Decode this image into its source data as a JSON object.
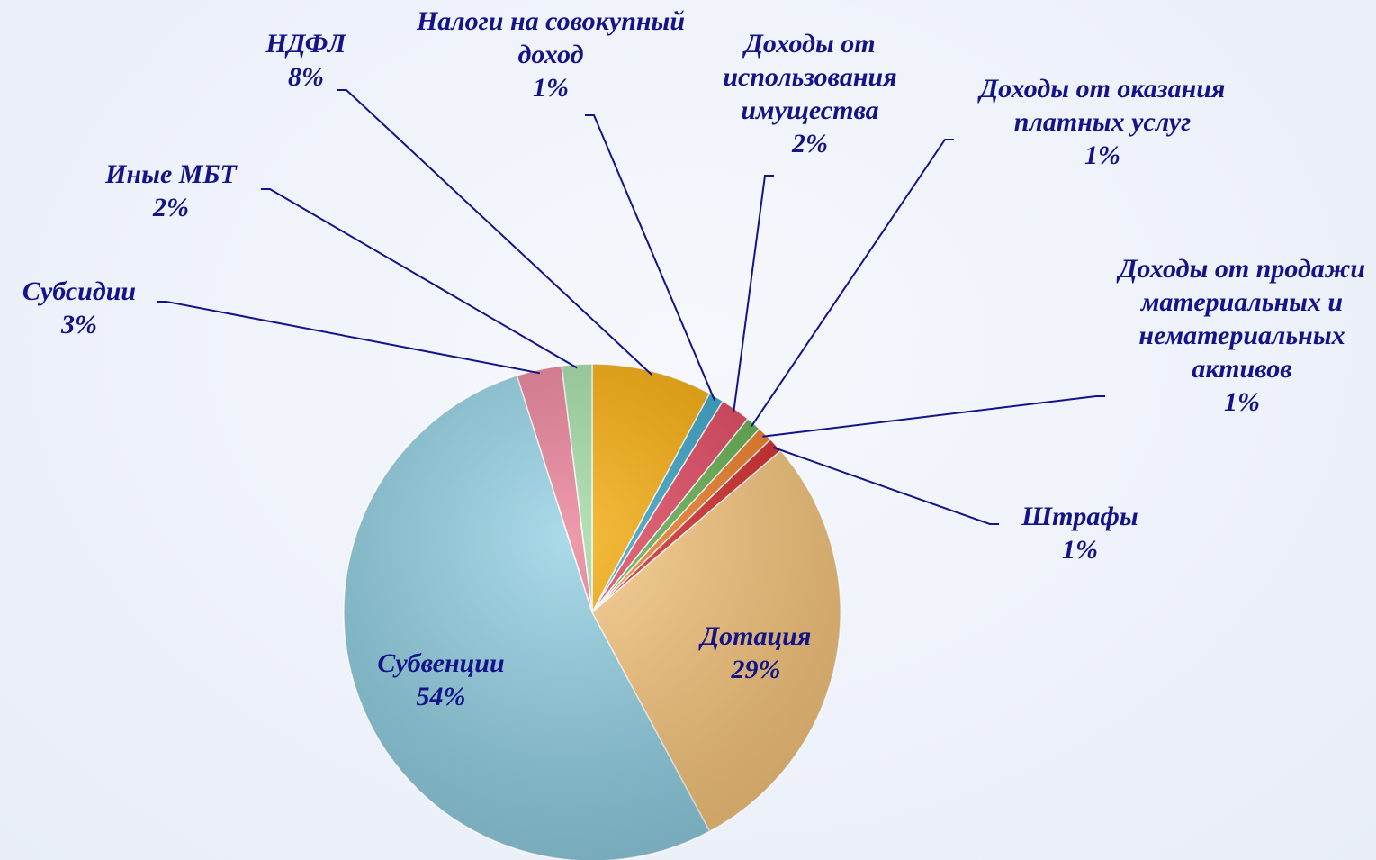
{
  "chart_data": {
    "type": "pie",
    "categories": [
      "НДФЛ",
      "Налоги на совокупный доход",
      "Доходы от использования имущества",
      "Доходы от оказания платных услуг",
      "Доходы от продажи материальных и нематериальных активов",
      "Штрафы",
      "Дотация",
      "Субвенции",
      "Субсидии",
      "Иные МБТ"
    ],
    "values": [
      8,
      1,
      2,
      1,
      1,
      1,
      29,
      54,
      3,
      2
    ],
    "value_labels": [
      "8%",
      "1%",
      "2%",
      "1%",
      "1%",
      "1%",
      "29%",
      "54%",
      "3%",
      "2%"
    ],
    "colors": [
      "#f5a800",
      "#2fa0c4",
      "#e0405a",
      "#5fae4a",
      "#f07a20",
      "#d42424",
      "#f8c57a",
      "#8fcfe2",
      "#e87a92",
      "#9ed8a0"
    ]
  }
}
